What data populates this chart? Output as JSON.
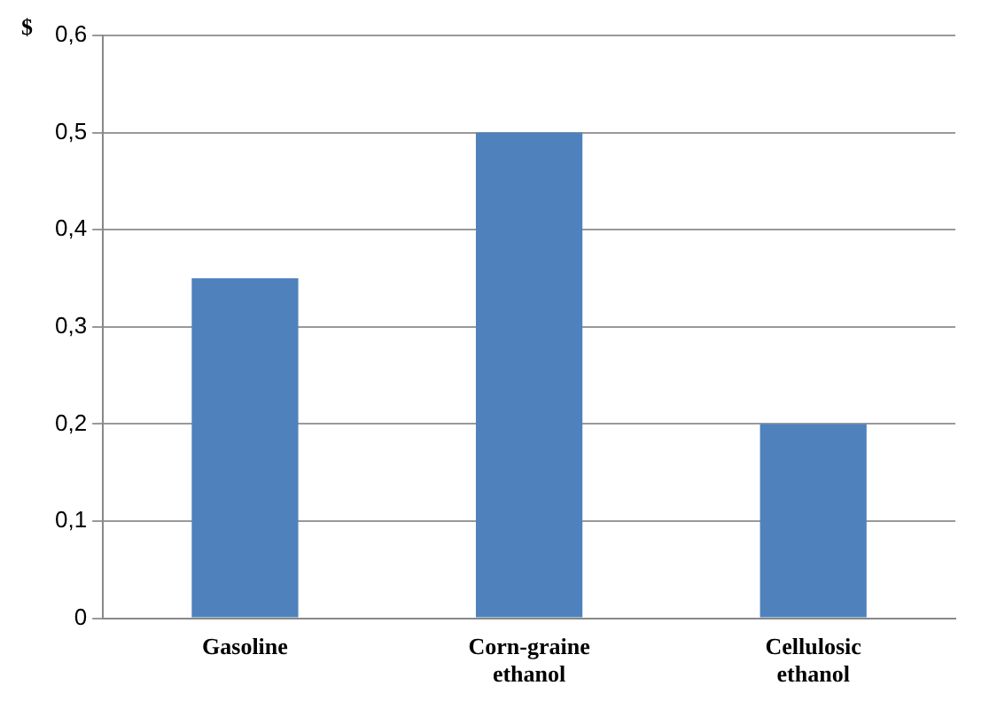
{
  "chart_data": {
    "type": "bar",
    "ylabel": "$",
    "categories": [
      "Gasoline",
      "Corn-graine ethanol",
      "Cellulosic ethanol"
    ],
    "values": [
      0.35,
      0.5,
      0.2
    ],
    "color": "#4f81bd",
    "ylim": [
      0,
      0.6
    ],
    "yticks": [
      {
        "value": 0,
        "label": "0"
      },
      {
        "value": 0.1,
        "label": "0,1"
      },
      {
        "value": 0.2,
        "label": "0,2"
      },
      {
        "value": 0.3,
        "label": "0,3"
      },
      {
        "value": 0.4,
        "label": "0,4"
      },
      {
        "value": 0.5,
        "label": "0,5"
      },
      {
        "value": 0.6,
        "label": "0,6"
      }
    ],
    "grid": "y",
    "legend": false
  }
}
